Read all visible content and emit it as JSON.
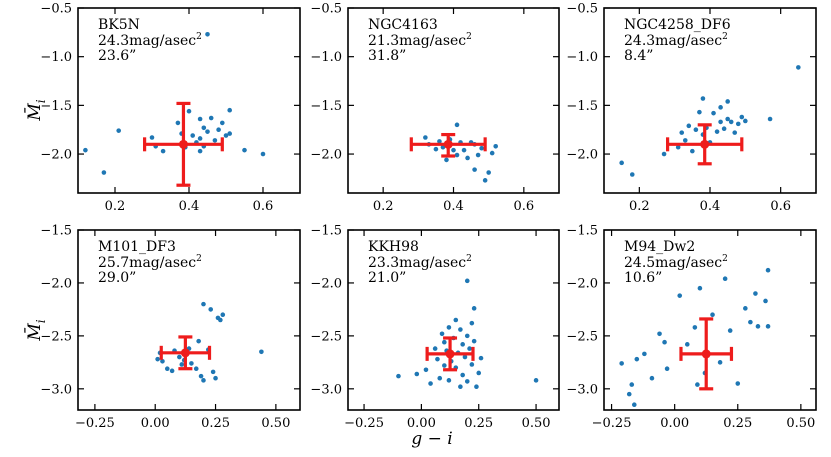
{
  "figure": {
    "xlabel": "g − i",
    "ylabel": "M̄",
    "ylabel_sub": "i",
    "point_color": "#1f77b4",
    "error_color": "#ee1c1c"
  },
  "chart_data": [
    {
      "type": "scatter",
      "title": "BK5N",
      "annotation": [
        "BK5N",
        "24.3mag/asec",
        "23.6”"
      ],
      "ann_sup": "2",
      "xlim": [
        0.1,
        0.7
      ],
      "ylim": [
        -2.4,
        -0.5
      ],
      "xticks": [
        0.2,
        0.4,
        0.6
      ],
      "xticklabels": [
        "0.2",
        "0.4",
        "0.6"
      ],
      "yticks": [
        -2.0,
        -1.5,
        -1.0,
        -0.5
      ],
      "yticklabels": [
        "−2.0",
        "−1.5",
        "−1.0",
        "−0.5"
      ],
      "show_xticklabels": true,
      "show_ylabel": true,
      "errorbar": {
        "x": 0.385,
        "y": -1.9,
        "xerr": 0.105,
        "yerr_low": 0.42,
        "yerr_high": 0.42
      },
      "points": [
        [
          0.12,
          -1.96
        ],
        [
          0.17,
          -2.19
        ],
        [
          0.21,
          -1.76
        ],
        [
          0.3,
          -1.83
        ],
        [
          0.31,
          -1.92
        ],
        [
          0.33,
          -1.97
        ],
        [
          0.37,
          -1.68
        ],
        [
          0.38,
          -1.79
        ],
        [
          0.39,
          -1.93
        ],
        [
          0.4,
          -1.56
        ],
        [
          0.41,
          -1.81
        ],
        [
          0.42,
          -1.88
        ],
        [
          0.43,
          -1.64
        ],
        [
          0.43,
          -1.84
        ],
        [
          0.43,
          -1.97
        ],
        [
          0.44,
          -1.73
        ],
        [
          0.44,
          -1.92
        ],
        [
          0.45,
          -0.77
        ],
        [
          0.45,
          -1.77
        ],
        [
          0.46,
          -1.63
        ],
        [
          0.47,
          -1.86
        ],
        [
          0.48,
          -1.75
        ],
        [
          0.49,
          -1.68
        ],
        [
          0.5,
          -1.81
        ],
        [
          0.51,
          -1.79
        ],
        [
          0.51,
          -1.55
        ],
        [
          0.55,
          -1.96
        ],
        [
          0.6,
          -2.0
        ]
      ]
    },
    {
      "type": "scatter",
      "title": "NGC4163",
      "annotation": [
        "NGC4163",
        "21.3mag/asec",
        "31.8”"
      ],
      "ann_sup": "2",
      "xlim": [
        0.1,
        0.7
      ],
      "ylim": [
        -2.4,
        -0.5
      ],
      "xticks": [
        0.2,
        0.4,
        0.6
      ],
      "xticklabels": [
        "0.2",
        "0.4",
        "0.6"
      ],
      "yticks": [
        -2.0,
        -1.5,
        -1.0,
        -0.5
      ],
      "yticklabels": [
        "−2.0",
        "−1.5",
        "−1.0",
        "−0.5"
      ],
      "show_xticklabels": true,
      "show_ylabel": false,
      "errorbar": {
        "x": 0.385,
        "y": -1.9,
        "xerr": 0.105,
        "yerr_low": 0.12,
        "yerr_high": 0.1
      },
      "points": [
        [
          0.32,
          -1.83
        ],
        [
          0.33,
          -1.9
        ],
        [
          0.35,
          -1.95
        ],
        [
          0.36,
          -1.87
        ],
        [
          0.37,
          -1.93
        ],
        [
          0.38,
          -2.06
        ],
        [
          0.39,
          -1.85
        ],
        [
          0.4,
          -1.96
        ],
        [
          0.41,
          -1.7
        ],
        [
          0.41,
          -2.01
        ],
        [
          0.42,
          -1.88
        ],
        [
          0.43,
          -1.96
        ],
        [
          0.44,
          -2.04
        ],
        [
          0.45,
          -1.88
        ],
        [
          0.46,
          -1.9
        ],
        [
          0.46,
          -2.16
        ],
        [
          0.47,
          -2.01
        ],
        [
          0.48,
          -1.94
        ],
        [
          0.49,
          -2.27
        ],
        [
          0.5,
          -2.19
        ],
        [
          0.51,
          -1.99
        ],
        [
          0.52,
          -1.92
        ]
      ]
    },
    {
      "type": "scatter",
      "title": "NGC4258_DF6",
      "annotation": [
        "NGC4258_DF6",
        "24.3mag/asec",
        "8.4”"
      ],
      "ann_sup": "2",
      "xlim": [
        0.1,
        0.7
      ],
      "ylim": [
        -2.4,
        -0.5
      ],
      "xticks": [
        0.2,
        0.4,
        0.6
      ],
      "xticklabels": [
        "0.2",
        "0.4",
        "0.6"
      ],
      "yticks": [
        -2.0,
        -1.5,
        -1.0,
        -0.5
      ],
      "yticklabels": [
        "−2.0",
        "−1.5",
        "−1.0",
        "−0.5"
      ],
      "show_xticklabels": true,
      "show_ylabel": false,
      "errorbar": {
        "x": 0.385,
        "y": -1.9,
        "xerr": 0.105,
        "yerr_low": 0.2,
        "yerr_high": 0.2
      },
      "points": [
        [
          0.15,
          -2.09
        ],
        [
          0.18,
          -2.21
        ],
        [
          0.27,
          -2.0
        ],
        [
          0.31,
          -1.93
        ],
        [
          0.32,
          -1.78
        ],
        [
          0.33,
          -1.86
        ],
        [
          0.34,
          -1.71
        ],
        [
          0.35,
          -1.97
        ],
        [
          0.36,
          -1.75
        ],
        [
          0.37,
          -1.57
        ],
        [
          0.38,
          -1.8
        ],
        [
          0.38,
          -1.43
        ],
        [
          0.39,
          -1.73
        ],
        [
          0.4,
          -1.88
        ],
        [
          0.41,
          -1.58
        ],
        [
          0.42,
          -1.77
        ],
        [
          0.43,
          -1.67
        ],
        [
          0.43,
          -1.52
        ],
        [
          0.44,
          -1.74
        ],
        [
          0.45,
          -1.64
        ],
        [
          0.45,
          -1.46
        ],
        [
          0.46,
          -1.67
        ],
        [
          0.47,
          -1.78
        ],
        [
          0.48,
          -1.69
        ],
        [
          0.49,
          -1.62
        ],
        [
          0.5,
          -1.66
        ],
        [
          0.57,
          -1.64
        ],
        [
          0.65,
          -1.11
        ]
      ]
    },
    {
      "type": "scatter",
      "title": "M101_DF3",
      "annotation": [
        "M101_DF3",
        "25.7mag/asec",
        "29.0”"
      ],
      "ann_sup": "2",
      "xlim": [
        -0.32,
        0.6
      ],
      "ylim": [
        -3.2,
        -1.5
      ],
      "xticks": [
        -0.25,
        0.0,
        0.25,
        0.5
      ],
      "xticklabels": [
        "−0.25",
        "0.00",
        "0.25",
        "0.50"
      ],
      "yticks": [
        -3.0,
        -2.5,
        -2.0,
        -1.5
      ],
      "yticklabels": [
        "−3.0",
        "−2.5",
        "−2.0",
        "−1.5"
      ],
      "show_xticklabels": true,
      "show_ylabel": true,
      "errorbar": {
        "x": 0.125,
        "y": -2.66,
        "xerr": 0.1,
        "yerr_low": 0.15,
        "yerr_high": 0.15
      },
      "points": [
        [
          0.01,
          -2.72
        ],
        [
          0.02,
          -2.66
        ],
        [
          0.03,
          -2.74
        ],
        [
          0.05,
          -2.81
        ],
        [
          0.07,
          -2.83
        ],
        [
          0.08,
          -2.64
        ],
        [
          0.1,
          -2.7
        ],
        [
          0.11,
          -2.77
        ],
        [
          0.12,
          -2.73
        ],
        [
          0.14,
          -2.62
        ],
        [
          0.15,
          -2.76
        ],
        [
          0.17,
          -2.81
        ],
        [
          0.18,
          -2.55
        ],
        [
          0.19,
          -2.88
        ],
        [
          0.2,
          -2.92
        ],
        [
          0.2,
          -2.2
        ],
        [
          0.22,
          -2.63
        ],
        [
          0.23,
          -2.25
        ],
        [
          0.24,
          -2.84
        ],
        [
          0.25,
          -2.9
        ],
        [
          0.26,
          -2.33
        ],
        [
          0.27,
          -2.35
        ],
        [
          0.28,
          -2.3
        ],
        [
          0.44,
          -2.65
        ]
      ]
    },
    {
      "type": "scatter",
      "title": "KKH98",
      "annotation": [
        "KKH98",
        "23.3mag/asec",
        "21.0”"
      ],
      "ann_sup": "2",
      "xlim": [
        -0.32,
        0.6
      ],
      "ylim": [
        -3.2,
        -1.5
      ],
      "xticks": [
        -0.25,
        0.0,
        0.25,
        0.5
      ],
      "xticklabels": [
        "−0.25",
        "0.00",
        "0.25",
        "0.50"
      ],
      "yticks": [
        -3.0,
        -2.5,
        -2.0,
        -1.5
      ],
      "yticklabels": [
        "−3.0",
        "−2.5",
        "−2.0",
        "−1.5"
      ],
      "show_xticklabels": true,
      "show_ylabel": false,
      "errorbar": {
        "x": 0.125,
        "y": -2.67,
        "xerr": 0.1,
        "yerr_low": 0.15,
        "yerr_high": 0.15
      },
      "points": [
        [
          -0.1,
          -2.88
        ],
        [
          -0.02,
          -2.86
        ],
        [
          0.02,
          -2.82
        ],
        [
          0.04,
          -2.95
        ],
        [
          0.06,
          -2.62
        ],
        [
          0.07,
          -2.72
        ],
        [
          0.08,
          -2.9
        ],
        [
          0.09,
          -2.48
        ],
        [
          0.1,
          -2.56
        ],
        [
          0.1,
          -2.78
        ],
        [
          0.11,
          -2.64
        ],
        [
          0.12,
          -2.42
        ],
        [
          0.12,
          -2.92
        ],
        [
          0.13,
          -2.74
        ],
        [
          0.14,
          -2.52
        ],
        [
          0.15,
          -2.8
        ],
        [
          0.15,
          -2.35
        ],
        [
          0.16,
          -2.66
        ],
        [
          0.17,
          -2.44
        ],
        [
          0.17,
          -2.98
        ],
        [
          0.18,
          -2.58
        ],
        [
          0.18,
          -2.87
        ],
        [
          0.19,
          -2.7
        ],
        [
          0.2,
          -2.5
        ],
        [
          0.2,
          -2.93
        ],
        [
          0.21,
          -2.62
        ],
        [
          0.22,
          -2.38
        ],
        [
          0.22,
          -2.77
        ],
        [
          0.23,
          -2.24
        ],
        [
          0.23,
          -2.55
        ],
        [
          0.24,
          -2.98
        ],
        [
          0.25,
          -2.85
        ],
        [
          0.26,
          -2.71
        ],
        [
          0.5,
          -2.92
        ],
        [
          0.2,
          -1.98
        ]
      ]
    },
    {
      "type": "scatter",
      "title": "M94_Dw2",
      "annotation": [
        "M94_Dw2",
        "24.5mag/asec",
        "10.6”"
      ],
      "ann_sup": "2",
      "xlim": [
        -0.28,
        0.56
      ],
      "ylim": [
        -3.2,
        -1.5
      ],
      "xticks": [
        -0.25,
        0.0,
        0.25,
        0.5
      ],
      "xticklabels": [
        "−0.25",
        "0.00",
        "0.25",
        "0.50"
      ],
      "yticks": [
        -3.0,
        -2.5,
        -2.0,
        -1.5
      ],
      "yticklabels": [
        "−3.0",
        "−2.5",
        "−2.0",
        "−1.5"
      ],
      "show_xticklabels": true,
      "show_ylabel": false,
      "errorbar": {
        "x": 0.125,
        "y": -2.67,
        "xerr": 0.1,
        "yerr_low": 0.33,
        "yerr_high": 0.33
      },
      "points": [
        [
          -0.21,
          -2.76
        ],
        [
          -0.18,
          -3.05
        ],
        [
          -0.17,
          -2.96
        ],
        [
          -0.16,
          -3.15
        ],
        [
          -0.15,
          -2.72
        ],
        [
          -0.12,
          -2.67
        ],
        [
          -0.09,
          -2.9
        ],
        [
          -0.06,
          -2.48
        ],
        [
          -0.04,
          -2.56
        ],
        [
          -0.03,
          -2.81
        ],
        [
          0.02,
          -2.12
        ],
        [
          0.05,
          -2.58
        ],
        [
          0.08,
          -2.42
        ],
        [
          0.09,
          -2.96
        ],
        [
          0.1,
          -2.05
        ],
        [
          0.12,
          -2.85
        ],
        [
          0.15,
          -2.3
        ],
        [
          0.18,
          -2.75
        ],
        [
          0.2,
          -1.96
        ],
        [
          0.22,
          -2.45
        ],
        [
          0.25,
          -2.95
        ],
        [
          0.28,
          -2.24
        ],
        [
          0.3,
          -2.37
        ],
        [
          0.32,
          -2.1
        ],
        [
          0.33,
          -2.41
        ],
        [
          0.36,
          -2.17
        ],
        [
          0.37,
          -2.41
        ],
        [
          0.37,
          -1.88
        ]
      ]
    }
  ]
}
